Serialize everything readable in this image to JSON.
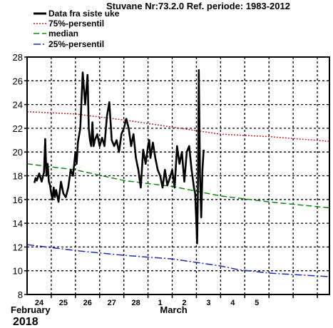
{
  "chart_data": {
    "type": "line",
    "title": "Stuvane Nr:73.2.0 Ref. periode: 1983-2012",
    "xlabel": "",
    "ylabel": "",
    "ylim": [
      8,
      28
    ],
    "yticks": [
      8,
      10,
      12,
      14,
      16,
      18,
      20,
      22,
      24,
      26,
      28
    ],
    "xlim": [
      0,
      12.5
    ],
    "day_ticks": [
      {
        "x": 0.5,
        "label": "24"
      },
      {
        "x": 1.5,
        "label": "25"
      },
      {
        "x": 2.5,
        "label": "26"
      },
      {
        "x": 3.5,
        "label": "27"
      },
      {
        "x": 4.5,
        "label": "28"
      },
      {
        "x": 5.5,
        "label": "1"
      },
      {
        "x": 6.5,
        "label": "2"
      },
      {
        "x": 7.5,
        "label": "3"
      },
      {
        "x": 8.5,
        "label": "4"
      },
      {
        "x": 9.5,
        "label": "5"
      }
    ],
    "month_labels": [
      {
        "x": 0,
        "label": "February"
      },
      {
        "x": 6.0,
        "label": "March"
      }
    ],
    "year_label": "2018",
    "grid": true,
    "legend_position": "top-left",
    "series": [
      {
        "name": "Data fra siste uke",
        "color": "#000000",
        "style": "solid",
        "x": [
          0.3,
          0.35,
          0.4,
          0.5,
          0.6,
          0.7,
          0.75,
          0.8,
          0.85,
          0.9,
          0.95,
          1.0,
          1.05,
          1.1,
          1.15,
          1.2,
          1.3,
          1.4,
          1.5,
          1.6,
          1.7,
          1.8,
          1.9,
          2.0,
          2.05,
          2.1,
          2.2,
          2.3,
          2.4,
          2.5,
          2.55,
          2.6,
          2.65,
          2.7,
          2.75,
          2.8,
          2.9,
          3.0,
          3.1,
          3.2,
          3.3,
          3.4,
          3.5,
          3.6,
          3.7,
          3.8,
          3.9,
          4.0,
          4.1,
          4.2,
          4.3,
          4.4,
          4.5,
          4.6,
          4.7,
          4.8,
          4.9,
          5.0,
          5.05,
          5.1,
          5.2,
          5.3,
          5.4,
          5.5,
          5.6,
          5.7,
          5.8,
          5.9,
          6.0,
          6.1,
          6.2,
          6.3,
          6.4,
          6.5,
          6.6,
          6.7,
          6.8,
          6.9,
          6.95,
          7.0,
          7.03,
          7.06,
          7.1,
          7.15,
          7.2,
          7.25,
          7.3
        ],
        "y": [
          17.4,
          17.8,
          17.6,
          18.2,
          17.5,
          18.3,
          21.1,
          18.0,
          19.0,
          17.5,
          17.2,
          16.5,
          16.0,
          17.0,
          16.2,
          16.8,
          15.8,
          17.5,
          16.5,
          16.2,
          17.0,
          18.5,
          18.0,
          20.0,
          19.0,
          20.8,
          22.0,
          26.7,
          24.0,
          26.5,
          22.0,
          21.0,
          20.5,
          22.5,
          20.5,
          21.0,
          21.5,
          20.5,
          21.2,
          20.5,
          23.0,
          24.2,
          21.0,
          20.5,
          21.0,
          20.0,
          21.5,
          22.0,
          22.8,
          22.0,
          20.5,
          21.5,
          19.5,
          18.5,
          17.0,
          20.2,
          19.0,
          20.5,
          21.0,
          19.5,
          20.8,
          19.5,
          18.5,
          18.0,
          17.0,
          18.5,
          17.2,
          17.8,
          18.5,
          17.0,
          20.5,
          19.0,
          20.0,
          17.5,
          20.0,
          20.5,
          18.5,
          17.0,
          16.5,
          14.0,
          12.3,
          16.5,
          26.9,
          18.0,
          14.5,
          18.5,
          20.2
        ]
      },
      {
        "name": "75%-persentil",
        "color": "#cc2222",
        "style": "dotted",
        "x": [
          0.0,
          2.0,
          4.0,
          6.0,
          8.0,
          10.0,
          12.5
        ],
        "y": [
          23.4,
          23.2,
          22.7,
          22.1,
          21.5,
          21.3,
          20.9
        ]
      },
      {
        "name": "median",
        "color": "#118811",
        "style": "dashed",
        "x": [
          0.0,
          2.0,
          4.0,
          6.0,
          8.0,
          10.0,
          12.5
        ],
        "y": [
          19.0,
          18.5,
          17.6,
          17.1,
          16.3,
          15.8,
          15.3
        ]
      },
      {
        "name": "25%-persentil",
        "color": "#1a2bbf",
        "style": "dashdot",
        "x": [
          0.0,
          2.0,
          4.0,
          6.0,
          8.0,
          8.7,
          10.0,
          12.5
        ],
        "y": [
          12.2,
          11.7,
          11.3,
          11.0,
          10.4,
          10.1,
          9.8,
          9.5
        ]
      }
    ]
  }
}
